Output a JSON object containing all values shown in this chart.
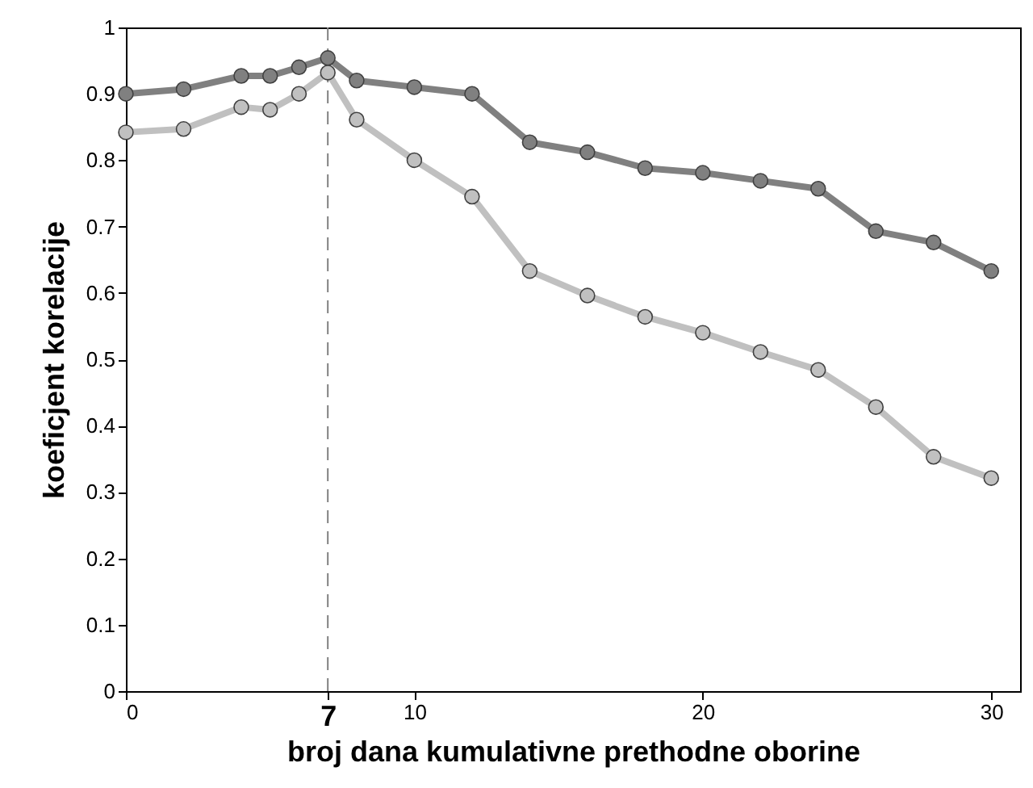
{
  "chart_data": {
    "type": "line",
    "xlabel": "broj dana kumulativne prethodne oborine",
    "ylabel": "koeficjent korelacije",
    "x": [
      0,
      2,
      4,
      5,
      6,
      7,
      8,
      10,
      12,
      14,
      16,
      18,
      20,
      22,
      24,
      26,
      28,
      30
    ],
    "series": [
      {
        "color": "#808080",
        "values": [
          0.9,
          0.907,
          0.927,
          0.927,
          0.94,
          0.954,
          0.92,
          0.91,
          0.9,
          0.827,
          0.812,
          0.788,
          0.781,
          0.769,
          0.757,
          0.693,
          0.676,
          0.633
        ]
      },
      {
        "color": "#c0c0c0",
        "values": [
          0.842,
          0.847,
          0.88,
          0.876,
          0.9,
          0.932,
          0.861,
          0.8,
          0.745,
          0.633,
          0.596,
          0.564,
          0.54,
          0.511,
          0.484,
          0.428,
          0.353,
          0.321
        ]
      }
    ],
    "xlim": [
      0,
      31
    ],
    "xticks": [
      0,
      7,
      10,
      20,
      30
    ],
    "ylim": [
      0,
      1
    ],
    "yticks": [
      0,
      0.1,
      0.2,
      0.3,
      0.4,
      0.5,
      0.6,
      0.7,
      0.8,
      0.9,
      1
    ],
    "ref_lines": [
      {
        "axis": "x",
        "value": 7,
        "color": "#808080",
        "line_style": "dashed"
      }
    ],
    "marker": "circle",
    "grid": false
  }
}
